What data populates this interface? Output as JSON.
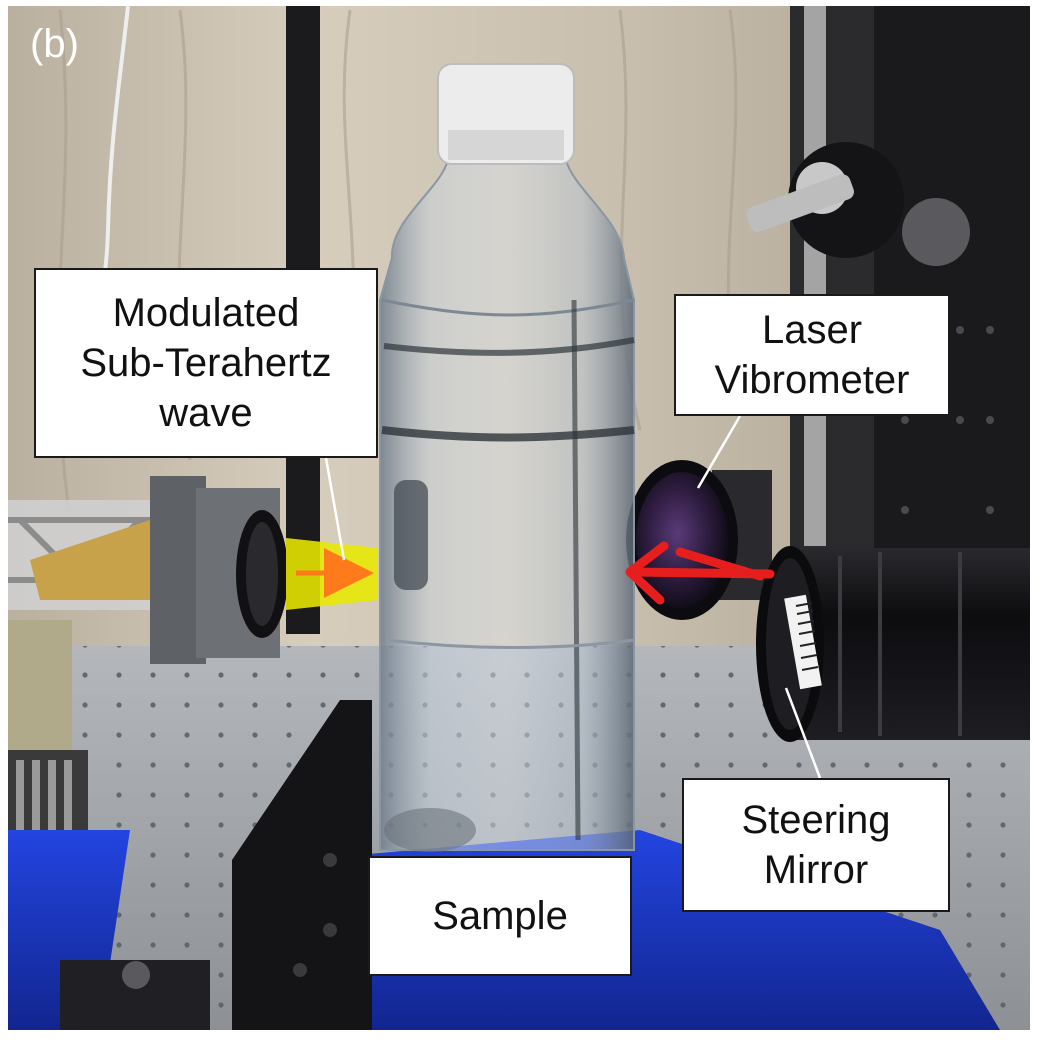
{
  "panel_label": "(b)",
  "callouts": {
    "modulated_wave": {
      "line1": "Modulated",
      "line2": "Sub-Terahertz",
      "line3": "wave"
    },
    "laser_vibrometer": {
      "line1": "Laser",
      "line2": "Vibrometer"
    },
    "steering_mirror": {
      "line1": "Steering",
      "line2": "Mirror"
    },
    "sample": {
      "line1": "Sample"
    }
  },
  "colors": {
    "beam_yellow": "#e8e800",
    "wave_arrow": "#ff7a1a",
    "laser_arrow": "#e61e1e",
    "tent_fabric": "#cfc6b6",
    "optical_table": "#9a9ea3",
    "mount_blue": "#1a3fd1"
  }
}
